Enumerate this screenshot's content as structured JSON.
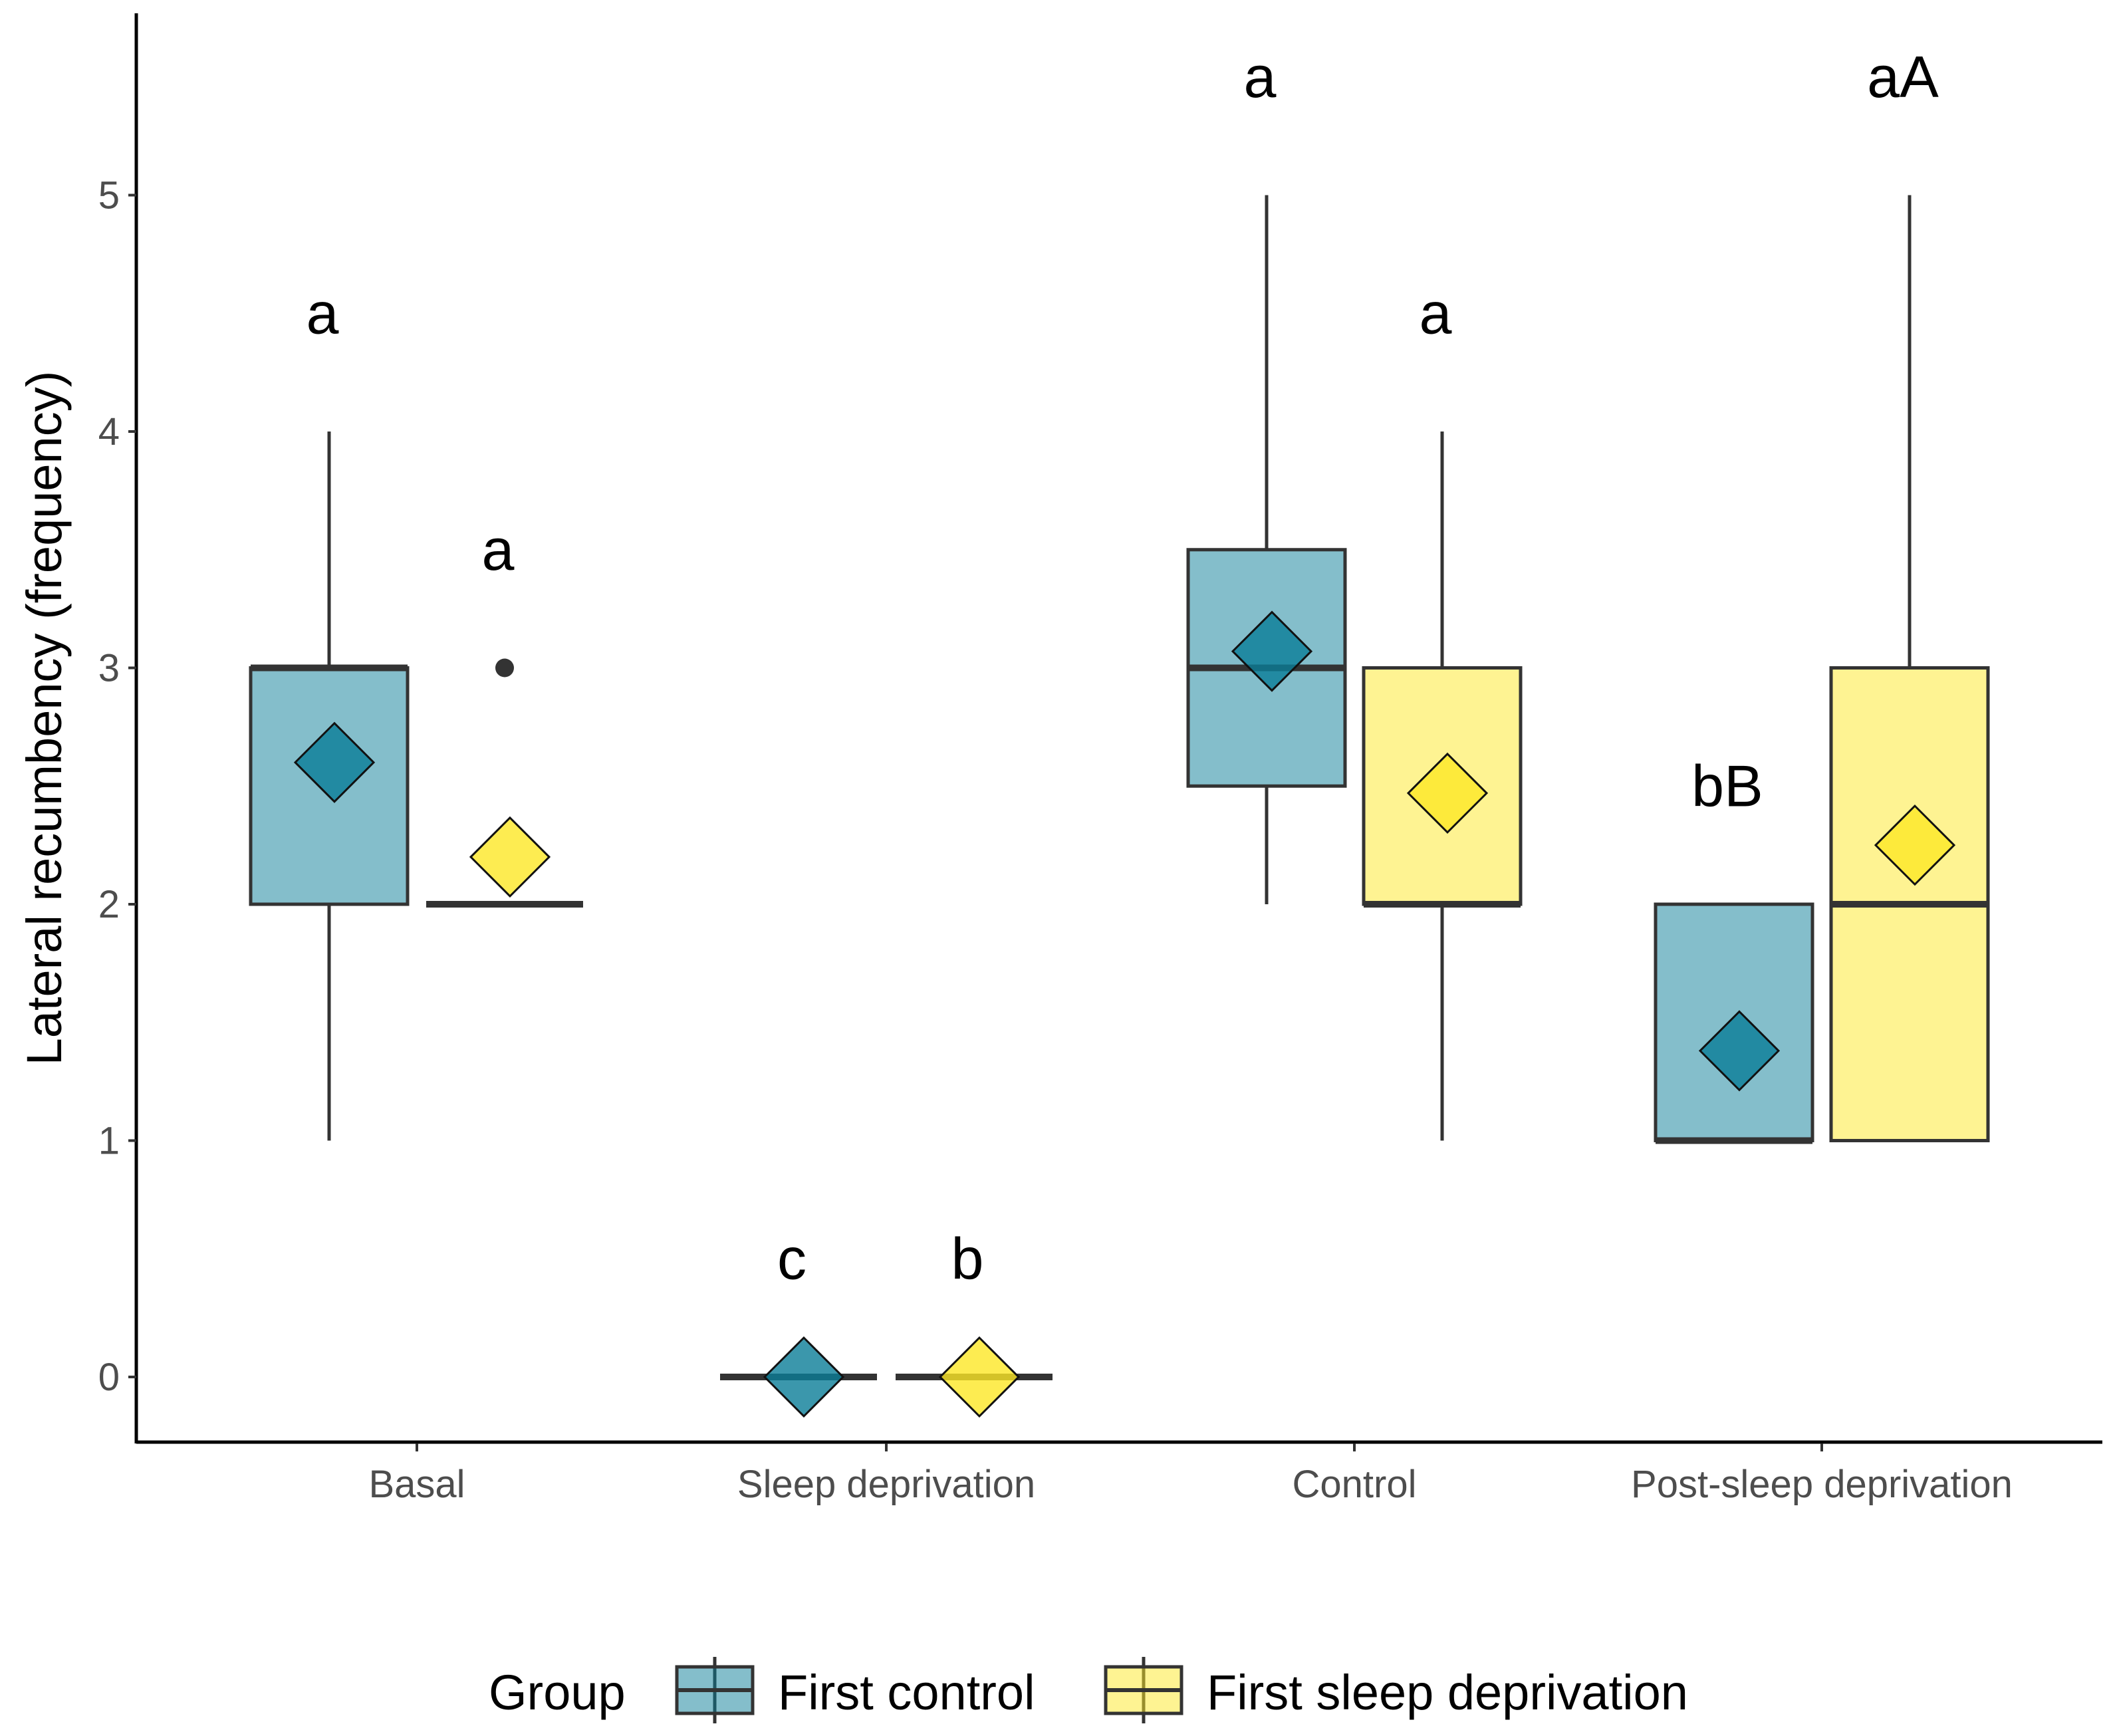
{
  "chart_data": {
    "type": "boxplot",
    "ylabel": "Lateral recumbency (frequency)",
    "xlabel": "",
    "ylim": [
      -0.27,
      5.8
    ],
    "yticks": [
      0,
      1,
      2,
      3,
      4,
      5
    ],
    "grid": false,
    "legend_position": "bottom",
    "categories": [
      "Basal",
      "Sleep deprivation",
      "Control",
      "Post-sleep deprivation"
    ],
    "series": [
      {
        "name": "First control",
        "color": "#0a7d97",
        "boxes": [
          {
            "min": 1,
            "q1": 2,
            "median": 3,
            "q3": 3,
            "max": 4,
            "mean": 2.6,
            "outliers": [],
            "letter": "a",
            "letter_y": 4.5
          },
          {
            "min": 0,
            "q1": 0,
            "median": 0,
            "q3": 0,
            "max": 0,
            "mean": 0,
            "outliers": [],
            "letter": "c",
            "letter_y": 0.5
          },
          {
            "min": 2,
            "q1": 2.5,
            "median": 3,
            "q3": 3.5,
            "max": 5,
            "mean": 3.07,
            "outliers": [],
            "letter": "a",
            "letter_y": 5.5
          },
          {
            "min": 1,
            "q1": 1,
            "median": 1,
            "q3": 2,
            "max": 2,
            "mean": 1.38,
            "outliers": [],
            "letter": "bB",
            "letter_y": 2.5
          }
        ]
      },
      {
        "name": "First sleep deprivation",
        "color": "#fde725",
        "boxes": [
          {
            "min": 2,
            "q1": 2,
            "median": 2,
            "q3": 2,
            "max": 2,
            "mean": 2.2,
            "outliers": [
              3
            ],
            "letter": "a",
            "letter_y": 3.5
          },
          {
            "min": 0,
            "q1": 0,
            "median": 0,
            "q3": 0,
            "max": 0,
            "mean": 0,
            "outliers": [],
            "letter": "b",
            "letter_y": 0.5
          },
          {
            "min": 1,
            "q1": 2,
            "median": 2,
            "q3": 3,
            "max": 4,
            "mean": 2.47,
            "outliers": [],
            "letter": "a",
            "letter_y": 4.5
          },
          {
            "min": 1,
            "q1": 1,
            "median": 2,
            "q3": 3,
            "max": 5,
            "mean": 2.25,
            "outliers": [],
            "letter": "aA",
            "letter_y": 5.5
          }
        ]
      }
    ]
  },
  "legend": {
    "title": "Group"
  }
}
